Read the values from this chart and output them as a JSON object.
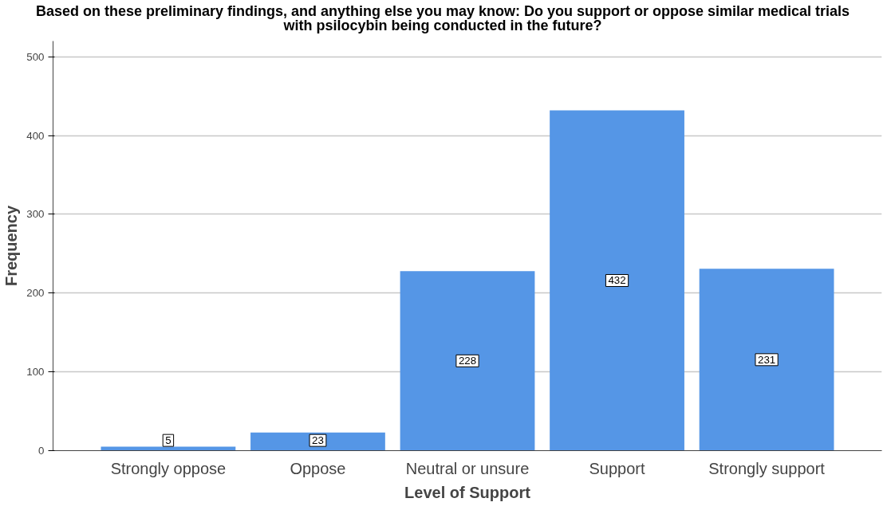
{
  "chart_data": {
    "type": "bar",
    "title": "Based on these preliminary findings, and anything else you may know:  Do you support or oppose similar medical trials with psilocybin being conducted in the future?",
    "xlabel": "Level of Support",
    "ylabel": "Frequency",
    "categories": [
      "Strongly oppose",
      "Oppose",
      "Neutral or unsure",
      "Support",
      "Strongly support"
    ],
    "values": [
      5,
      23,
      228,
      432,
      231
    ],
    "color": "#5596e6",
    "ylim": [
      0,
      520
    ],
    "yticks": [
      0,
      100,
      200,
      300,
      400,
      500
    ],
    "grid": "y",
    "data_labels": true
  }
}
